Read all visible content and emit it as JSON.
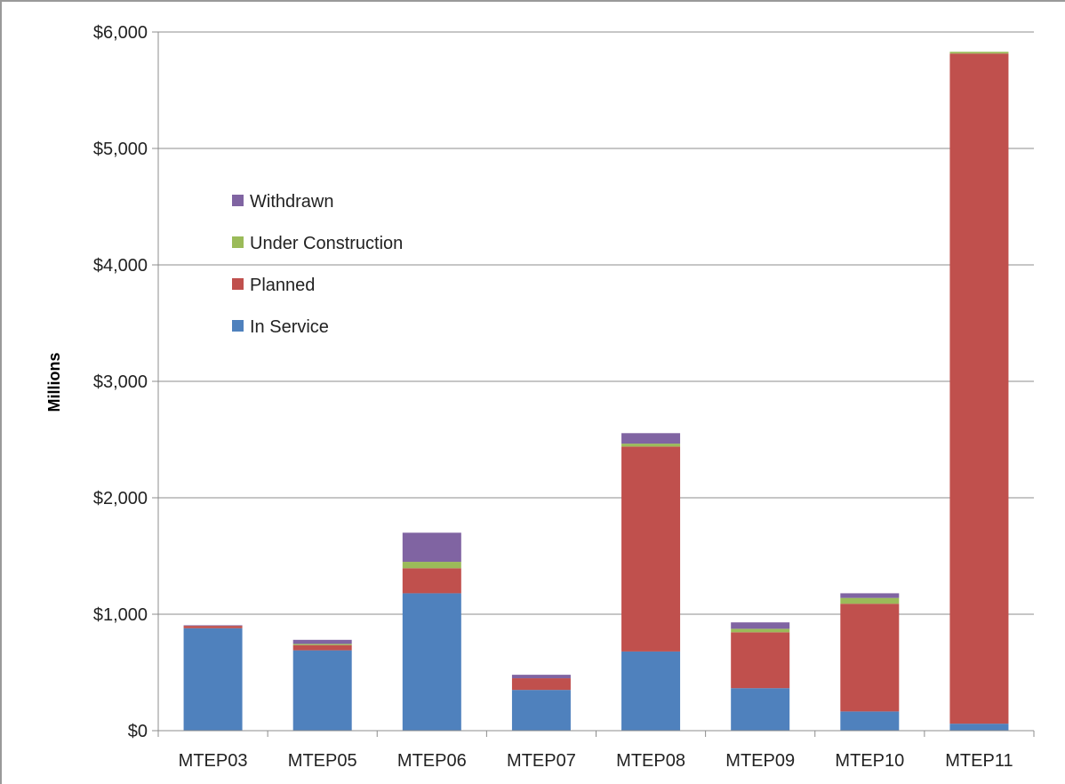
{
  "chart_data": {
    "type": "bar",
    "stacked": true,
    "categories": [
      "MTEP03",
      "MTEP05",
      "MTEP06",
      "MTEP07",
      "MTEP08",
      "MTEP09",
      "MTEP10",
      "MTEP11"
    ],
    "series": [
      {
        "name": "In Service",
        "color": "#4f81bd",
        "values": [
          880,
          690,
          1180,
          350,
          680,
          365,
          165,
          60
        ]
      },
      {
        "name": "Planned",
        "color": "#c0504d",
        "values": [
          20,
          45,
          215,
          100,
          1760,
          480,
          925,
          5755
        ]
      },
      {
        "name": "Under Construction",
        "color": "#9bbb59",
        "values": [
          0,
          10,
          55,
          0,
          25,
          30,
          50,
          15
        ]
      },
      {
        "name": "Withdrawn",
        "color": "#8064a2",
        "values": [
          5,
          35,
          250,
          30,
          90,
          55,
          40,
          0
        ]
      }
    ],
    "ylabel": "Millions",
    "xlabel": "",
    "ylim": [
      0,
      6000
    ],
    "yticks": [
      0,
      1000,
      2000,
      3000,
      4000,
      5000,
      6000
    ],
    "ytick_labels": [
      "$0",
      "$1,000",
      "$2,000",
      "$3,000",
      "$4,000",
      "$5,000",
      "$6,000"
    ],
    "legend_order": [
      "Withdrawn",
      "Under Construction",
      "Planned",
      "In Service"
    ],
    "legend_position": "upper-left inside plot",
    "grid": true
  }
}
